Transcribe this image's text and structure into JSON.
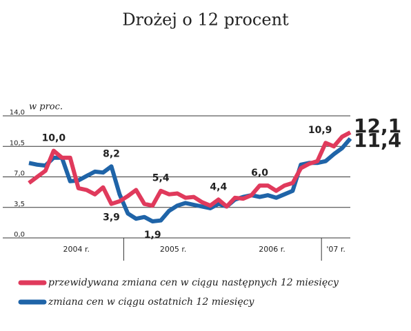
{
  "chart_data": {
    "type": "line",
    "title": "Drożej o 12 procent",
    "y_axis_label": "w proc.",
    "categories": [
      null,
      null,
      null,
      null,
      null,
      null,
      null,
      null,
      null,
      null,
      null,
      null,
      null,
      null,
      null,
      null,
      null,
      null,
      null,
      null,
      null,
      null,
      null,
      null,
      null,
      null,
      null,
      null,
      null,
      null,
      null,
      null,
      null,
      null,
      null,
      null,
      null,
      null,
      null,
      null
    ],
    "x_groups": [
      {
        "label": "2004 r.",
        "span": 12
      },
      {
        "label": "2005 r.",
        "span": 12
      },
      {
        "label": "2006 r.",
        "span": 12
      },
      {
        "label": "'07 r.",
        "span": 4
      }
    ],
    "ylim": [
      0,
      14
    ],
    "yticks": [
      {
        "value": 0,
        "label": "0,0"
      },
      {
        "value": 3.5,
        "label": "3,5"
      },
      {
        "value": 7,
        "label": "7,0"
      },
      {
        "value": 10.5,
        "label": "10,5"
      },
      {
        "value": 14,
        "label": "14,0"
      }
    ],
    "grid": true,
    "series": [
      {
        "name": "przewidywana zmiana cen w ciągu następnych 12 miesięcy",
        "color": "#e03a5c",
        "values": [
          6.3,
          7.0,
          7.7,
          10.0,
          9.2,
          9.2,
          5.7,
          5.5,
          5.0,
          5.8,
          3.9,
          4.2,
          4.8,
          5.5,
          3.9,
          3.7,
          5.4,
          5.0,
          5.1,
          4.6,
          4.7,
          4.1,
          3.7,
          4.4,
          3.6,
          4.6,
          4.5,
          4.9,
          6.0,
          6.0,
          5.4,
          6.0,
          6.3,
          8.0,
          8.5,
          8.8,
          10.9,
          10.5,
          11.6,
          12.1
        ],
        "value_labels": [
          null,
          null,
          null,
          "10,0",
          null,
          null,
          null,
          null,
          null,
          null,
          "3,9",
          null,
          null,
          null,
          null,
          null,
          "5,4",
          null,
          null,
          null,
          null,
          null,
          null,
          "4,4",
          null,
          null,
          null,
          null,
          "6,0",
          null,
          null,
          null,
          null,
          null,
          null,
          null,
          "10,9",
          null,
          null,
          "12,1"
        ]
      },
      {
        "name": "zmiana cen w ciągu ostatnich 12 miesięcy",
        "color": "#1f64a8",
        "values": [
          8.6,
          8.4,
          8.3,
          9.2,
          9.2,
          6.5,
          6.6,
          7.1,
          7.6,
          7.5,
          8.2,
          5.0,
          2.8,
          2.2,
          2.4,
          1.9,
          2.0,
          3.1,
          3.7,
          4.0,
          3.8,
          3.6,
          3.4,
          3.9,
          3.6,
          4.4,
          4.7,
          4.9,
          4.7,
          4.9,
          4.6,
          5.0,
          5.4,
          8.4,
          8.6,
          8.6,
          8.8,
          9.6,
          10.3,
          11.4
        ],
        "value_labels": [
          null,
          null,
          null,
          null,
          null,
          null,
          null,
          null,
          null,
          null,
          "8,2",
          null,
          null,
          null,
          null,
          "1,9",
          null,
          null,
          null,
          null,
          null,
          null,
          null,
          null,
          null,
          null,
          null,
          null,
          null,
          null,
          null,
          null,
          null,
          null,
          null,
          null,
          null,
          null,
          null,
          "11,4"
        ]
      }
    ]
  }
}
